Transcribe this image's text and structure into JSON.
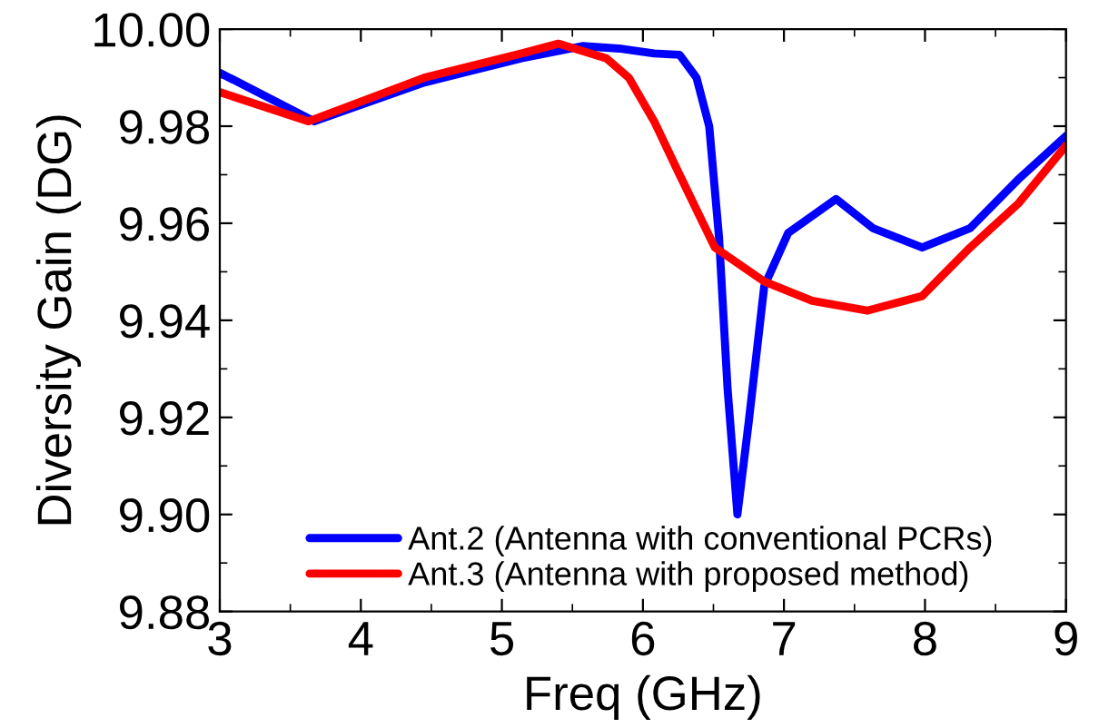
{
  "chart_data": {
    "type": "line",
    "xlabel": "Freq (GHz)",
    "ylabel": "Diversity Gain (DG)",
    "xlim": [
      3,
      9
    ],
    "xticks": [
      3,
      4,
      5,
      6,
      7,
      8,
      9
    ],
    "ylim": [
      9.88,
      10.0
    ],
    "yticks": [
      {
        "value": 9.88,
        "label": "9.88"
      },
      {
        "value": 9.9,
        "label": "9.90"
      },
      {
        "value": 9.92,
        "label": "9.92"
      },
      {
        "value": 9.94,
        "label": "9.94"
      },
      {
        "value": 9.96,
        "label": "9.96"
      },
      {
        "value": 9.98,
        "label": "9.98"
      },
      {
        "value": 10.0,
        "label": "10.00"
      }
    ],
    "grid": false,
    "legend": "bottom",
    "marker": "none",
    "line_style": "solid",
    "series": [
      {
        "name": "Ant.2 (Antenna with conventional PCRs)",
        "color": "#0000ff",
        "x": [
          3.0,
          3.67,
          4.45,
          5.14,
          5.57,
          5.83,
          6.08,
          6.26,
          6.38,
          6.47,
          6.54,
          6.6,
          6.67,
          6.75,
          6.86,
          7.03,
          7.37,
          7.63,
          7.98,
          8.32,
          8.66,
          9.0
        ],
        "values": [
          9.991,
          9.981,
          9.989,
          9.994,
          9.9965,
          9.996,
          9.995,
          9.9947,
          9.99,
          9.98,
          9.957,
          9.926,
          9.9,
          9.919,
          9.947,
          9.958,
          9.965,
          9.959,
          9.955,
          9.959,
          9.969,
          9.978
        ]
      },
      {
        "name": "Ant.3 (Antenna with proposed method)",
        "color": "#ff0000",
        "x": [
          3.0,
          3.63,
          4.45,
          5.14,
          5.4,
          5.74,
          5.9,
          6.08,
          6.26,
          6.51,
          6.86,
          7.2,
          7.59,
          7.98,
          8.32,
          8.66,
          9.0
        ],
        "values": [
          9.987,
          9.981,
          9.99,
          9.995,
          9.997,
          9.994,
          9.99,
          9.981,
          9.97,
          9.955,
          9.948,
          9.944,
          9.942,
          9.945,
          9.955,
          9.964,
          9.976
        ]
      }
    ]
  }
}
